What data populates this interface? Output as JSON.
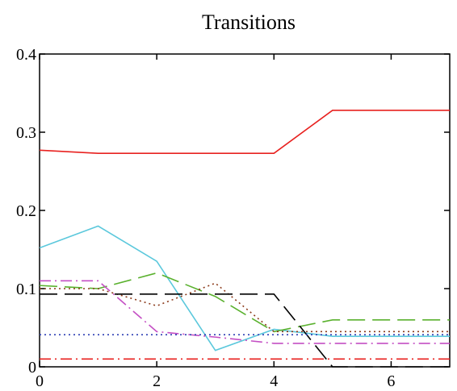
{
  "chart_data": {
    "type": "line",
    "title": "Transitions",
    "xlabel": "",
    "ylabel": "",
    "xlim": [
      0,
      7
    ],
    "ylim": [
      0,
      0.4
    ],
    "x_ticks": [
      0,
      2,
      4,
      6
    ],
    "x_tick_labels": [
      "0",
      "2",
      "4",
      "6"
    ],
    "y_ticks": [
      0,
      0.1,
      0.2,
      0.3,
      0.4
    ],
    "y_tick_labels": [
      "0",
      "0.1",
      "0.2",
      "0.3",
      "0.4"
    ],
    "grid": false,
    "legend": "none",
    "x": [
      0,
      1,
      2,
      3,
      4,
      5,
      6,
      7
    ],
    "series": [
      {
        "color": "#e8211f",
        "dash": "solid",
        "values": [
          0.277,
          0.273,
          0.273,
          0.273,
          0.273,
          0.328,
          0.328,
          0.328
        ]
      },
      {
        "color": "#5bc8dc",
        "dash": "solid",
        "values": [
          0.152,
          0.18,
          0.135,
          0.021,
          0.048,
          0.039,
          0.039,
          0.039
        ]
      },
      {
        "color": "#5ab12e",
        "dash": "longdash",
        "values": [
          0.104,
          0.1,
          0.12,
          0.09,
          0.045,
          0.06,
          0.06,
          0.06
        ]
      },
      {
        "color": "#c44fc4",
        "dash": "dashdot",
        "values": [
          0.11,
          0.11,
          0.045,
          0.038,
          0.03,
          0.03,
          0.03,
          0.03
        ]
      },
      {
        "color": "#8b3a1a",
        "dash": "dotted",
        "values": [
          0.1,
          0.1,
          0.078,
          0.107,
          0.045,
          0.045,
          0.045,
          0.045
        ]
      },
      {
        "color": "#000000",
        "dash": "longdash",
        "values": [
          0.093,
          0.093,
          0.093,
          0.093,
          0.093,
          0.0,
          0.0,
          0.0
        ]
      },
      {
        "color": "#2d3fb5",
        "dash": "dotted",
        "values": [
          0.041,
          0.041,
          0.041,
          0.041,
          0.041,
          0.041,
          0.041,
          0.041
        ]
      },
      {
        "color": "#e8211f",
        "dash": "dashdot",
        "values": [
          0.01,
          0.01,
          0.01,
          0.01,
          0.01,
          0.01,
          0.01,
          0.01
        ]
      }
    ]
  }
}
